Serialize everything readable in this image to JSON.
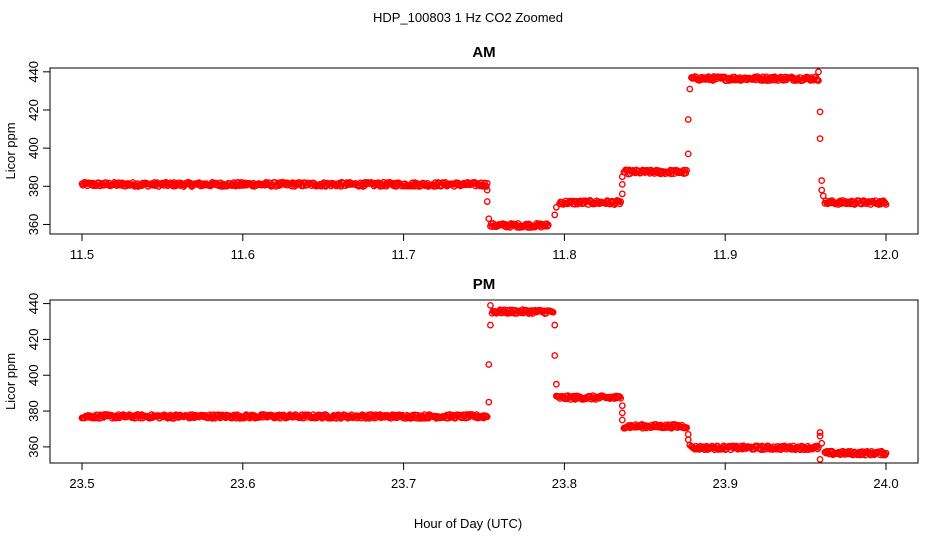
{
  "figure": {
    "title": "HDP_100803  1 Hz CO2 Zoomed",
    "xlabel": "Hour of Day (UTC)"
  },
  "chart_data": [
    {
      "type": "scatter",
      "title": "AM",
      "ylabel": "Licor ppm",
      "xlim": [
        11.5,
        12.0
      ],
      "ylim": [
        355,
        442
      ],
      "xticks": [
        "11.5",
        "11.6",
        "11.7",
        "11.8",
        "11.9",
        "12.0"
      ],
      "yticks": [
        "360",
        "380",
        "400",
        "420",
        "440"
      ],
      "marker_color": "#ff0000",
      "segments": [
        {
          "x": [
            11.5,
            11.752
          ],
          "y": 381
        },
        {
          "x": [
            11.754,
            11.79
          ],
          "y": 359.5
        },
        {
          "x": [
            11.797,
            11.835
          ],
          "y": 371.5
        },
        {
          "x": [
            11.837,
            11.876
          ],
          "y": 387.5
        },
        {
          "x": [
            11.879,
            11.958
          ],
          "y": 436.5
        },
        {
          "x": [
            11.962,
            12.0
          ],
          "y": 371.5
        }
      ],
      "transitions": [
        {
          "x": 11.752,
          "y": 378
        },
        {
          "x": 11.752,
          "y": 372
        },
        {
          "x": 11.753,
          "y": 363
        },
        {
          "x": 11.794,
          "y": 365
        },
        {
          "x": 11.795,
          "y": 369
        },
        {
          "x": 11.836,
          "y": 376
        },
        {
          "x": 11.836,
          "y": 381
        },
        {
          "x": 11.836,
          "y": 385
        },
        {
          "x": 11.877,
          "y": 397
        },
        {
          "x": 11.877,
          "y": 415
        },
        {
          "x": 11.878,
          "y": 431
        },
        {
          "x": 11.958,
          "y": 440
        },
        {
          "x": 11.959,
          "y": 419
        },
        {
          "x": 11.959,
          "y": 405
        },
        {
          "x": 11.96,
          "y": 383
        },
        {
          "x": 11.96,
          "y": 378
        },
        {
          "x": 11.961,
          "y": 375
        }
      ]
    },
    {
      "type": "scatter",
      "title": "PM",
      "ylabel": "Licor ppm",
      "xlim": [
        23.5,
        24.0
      ],
      "ylim": [
        351,
        442
      ],
      "xticks": [
        "23.5",
        "23.6",
        "23.7",
        "23.8",
        "23.9",
        "24.0"
      ],
      "yticks": [
        "360",
        "380",
        "400",
        "420",
        "440"
      ],
      "marker_color": "#ff0000",
      "segments": [
        {
          "x": [
            23.5,
            23.752
          ],
          "y": 377
        },
        {
          "x": [
            23.755,
            23.793
          ],
          "y": 435.5
        },
        {
          "x": [
            23.795,
            23.835
          ],
          "y": 387.5
        },
        {
          "x": [
            23.837,
            23.876
          ],
          "y": 371.5
        },
        {
          "x": [
            23.879,
            23.958
          ],
          "y": 359.5
        },
        {
          "x": [
            23.962,
            24.0
          ],
          "y": 356.5
        }
      ],
      "transitions": [
        {
          "x": 23.753,
          "y": 385
        },
        {
          "x": 23.753,
          "y": 406
        },
        {
          "x": 23.754,
          "y": 428
        },
        {
          "x": 23.754,
          "y": 439
        },
        {
          "x": 23.794,
          "y": 428
        },
        {
          "x": 23.794,
          "y": 411
        },
        {
          "x": 23.795,
          "y": 395
        },
        {
          "x": 23.836,
          "y": 383
        },
        {
          "x": 23.836,
          "y": 379
        },
        {
          "x": 23.836,
          "y": 375
        },
        {
          "x": 23.877,
          "y": 367
        },
        {
          "x": 23.877,
          "y": 364
        },
        {
          "x": 23.878,
          "y": 361
        },
        {
          "x": 23.959,
          "y": 368
        },
        {
          "x": 23.959,
          "y": 366
        },
        {
          "x": 23.959,
          "y": 353
        },
        {
          "x": 23.96,
          "y": 362
        }
      ]
    }
  ]
}
